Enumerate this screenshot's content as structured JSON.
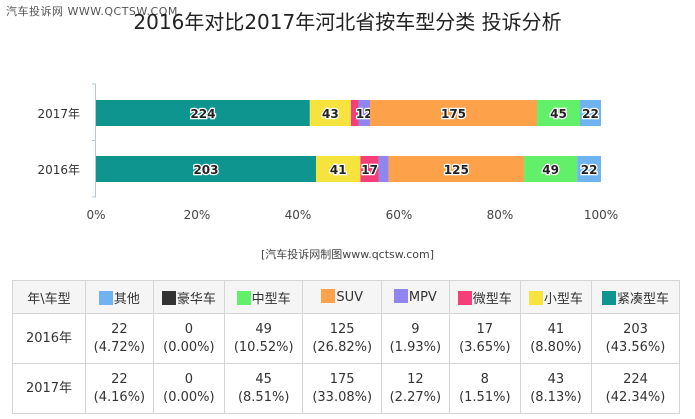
{
  "watermark": "汽车投诉网 WWW.QCTSW.COM",
  "title": "2016年对比2017年河北省按车型分类 投诉分析",
  "source": "[汽车投诉网制图www.qctsw.com]",
  "chart_data": {
    "type": "bar",
    "orientation": "horizontal",
    "stacked": "percent",
    "categories": [
      "2017年",
      "2016年"
    ],
    "x_ticks": [
      "0%",
      "20%",
      "40%",
      "60%",
      "80%",
      "100%"
    ],
    "xlim": [
      0,
      100
    ],
    "series": [
      {
        "name": "紧凑型车",
        "color": "#0e9590",
        "values": [
          224,
          203
        ],
        "labels": [
          "224",
          "203"
        ]
      },
      {
        "name": "小型车",
        "color": "#f6e33e",
        "values": [
          43,
          41
        ],
        "labels": [
          "43",
          "41"
        ]
      },
      {
        "name": "微型车",
        "color": "#f43f78",
        "values": [
          8,
          17
        ],
        "labels": [
          "",
          "17"
        ]
      },
      {
        "name": "MPV",
        "color": "#8f86f2",
        "values": [
          12,
          9
        ],
        "labels": [
          "12",
          ""
        ]
      },
      {
        "name": "SUV",
        "color": "#fda14b",
        "values": [
          175,
          125
        ],
        "labels": [
          "175",
          "125"
        ]
      },
      {
        "name": "中型车",
        "color": "#62f06b",
        "values": [
          45,
          49
        ],
        "labels": [
          "45",
          "49"
        ]
      },
      {
        "name": "豪华车",
        "color": "#333333",
        "values": [
          0,
          0
        ],
        "labels": [
          "",
          ""
        ]
      },
      {
        "name": "其他",
        "color": "#6fb3f0",
        "values": [
          22,
          22
        ],
        "labels": [
          "22",
          "22"
        ]
      }
    ]
  },
  "table": {
    "corner": "年\\车型",
    "columns": [
      {
        "label": "其他",
        "color": "#6fb3f0"
      },
      {
        "label": "豪华车",
        "color": "#333333"
      },
      {
        "label": "中型车",
        "color": "#62f06b"
      },
      {
        "label": "SUV",
        "color": "#fda14b"
      },
      {
        "label": "MPV",
        "color": "#8f86f2"
      },
      {
        "label": "微型车",
        "color": "#f43f78"
      },
      {
        "label": "小型车",
        "color": "#f6e33e"
      },
      {
        "label": "紧凑型车",
        "color": "#0e9590"
      }
    ],
    "rows": [
      {
        "year": "2016年",
        "cells": [
          {
            "v": "22",
            "p": "(4.72%)"
          },
          {
            "v": "0",
            "p": "(0.00%)"
          },
          {
            "v": "49",
            "p": "(10.52%)"
          },
          {
            "v": "125",
            "p": "(26.82%)"
          },
          {
            "v": "9",
            "p": "(1.93%)"
          },
          {
            "v": "17",
            "p": "(3.65%)"
          },
          {
            "v": "41",
            "p": "(8.80%)"
          },
          {
            "v": "203",
            "p": "(43.56%)"
          }
        ]
      },
      {
        "year": "2017年",
        "cells": [
          {
            "v": "22",
            "p": "(4.16%)"
          },
          {
            "v": "0",
            "p": "(0.00%)"
          },
          {
            "v": "45",
            "p": "(8.51%)"
          },
          {
            "v": "175",
            "p": "(33.08%)"
          },
          {
            "v": "12",
            "p": "(2.27%)"
          },
          {
            "v": "8",
            "p": "(1.51%)"
          },
          {
            "v": "43",
            "p": "(8.13%)"
          },
          {
            "v": "224",
            "p": "(42.34%)"
          }
        ]
      }
    ]
  }
}
